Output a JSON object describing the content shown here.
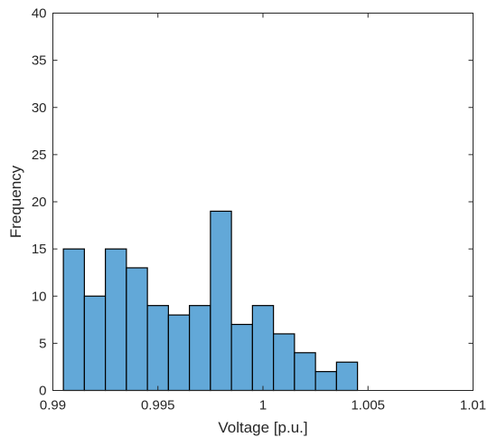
{
  "chart_data": {
    "type": "bar",
    "xlabel": "Voltage [p.u.]",
    "ylabel": "Frequency",
    "xlim": [
      0.99,
      1.01
    ],
    "ylim": [
      0,
      40
    ],
    "xticks": [
      0.99,
      0.995,
      1,
      1.005,
      1.01
    ],
    "xtick_labels": [
      "0.99",
      "0.995",
      "1",
      "1.005",
      "1.01"
    ],
    "yticks": [
      0,
      5,
      10,
      15,
      20,
      25,
      30,
      35,
      40
    ],
    "ytick_labels": [
      "0",
      "5",
      "10",
      "15",
      "20",
      "25",
      "30",
      "35",
      "40"
    ],
    "bin_edges": [
      0.9905,
      0.9915,
      0.9925,
      0.9935,
      0.9945,
      0.9955,
      0.9965,
      0.9975,
      0.9985,
      0.9995,
      1.0005,
      1.0015,
      1.0025,
      1.0035,
      1.0045
    ],
    "values": [
      15,
      10,
      15,
      13,
      9,
      8,
      9,
      19,
      7,
      9,
      6,
      4,
      2,
      3
    ],
    "bar_color": "#62a8d8",
    "edge_color": "#000000",
    "grid": false,
    "box": true
  }
}
